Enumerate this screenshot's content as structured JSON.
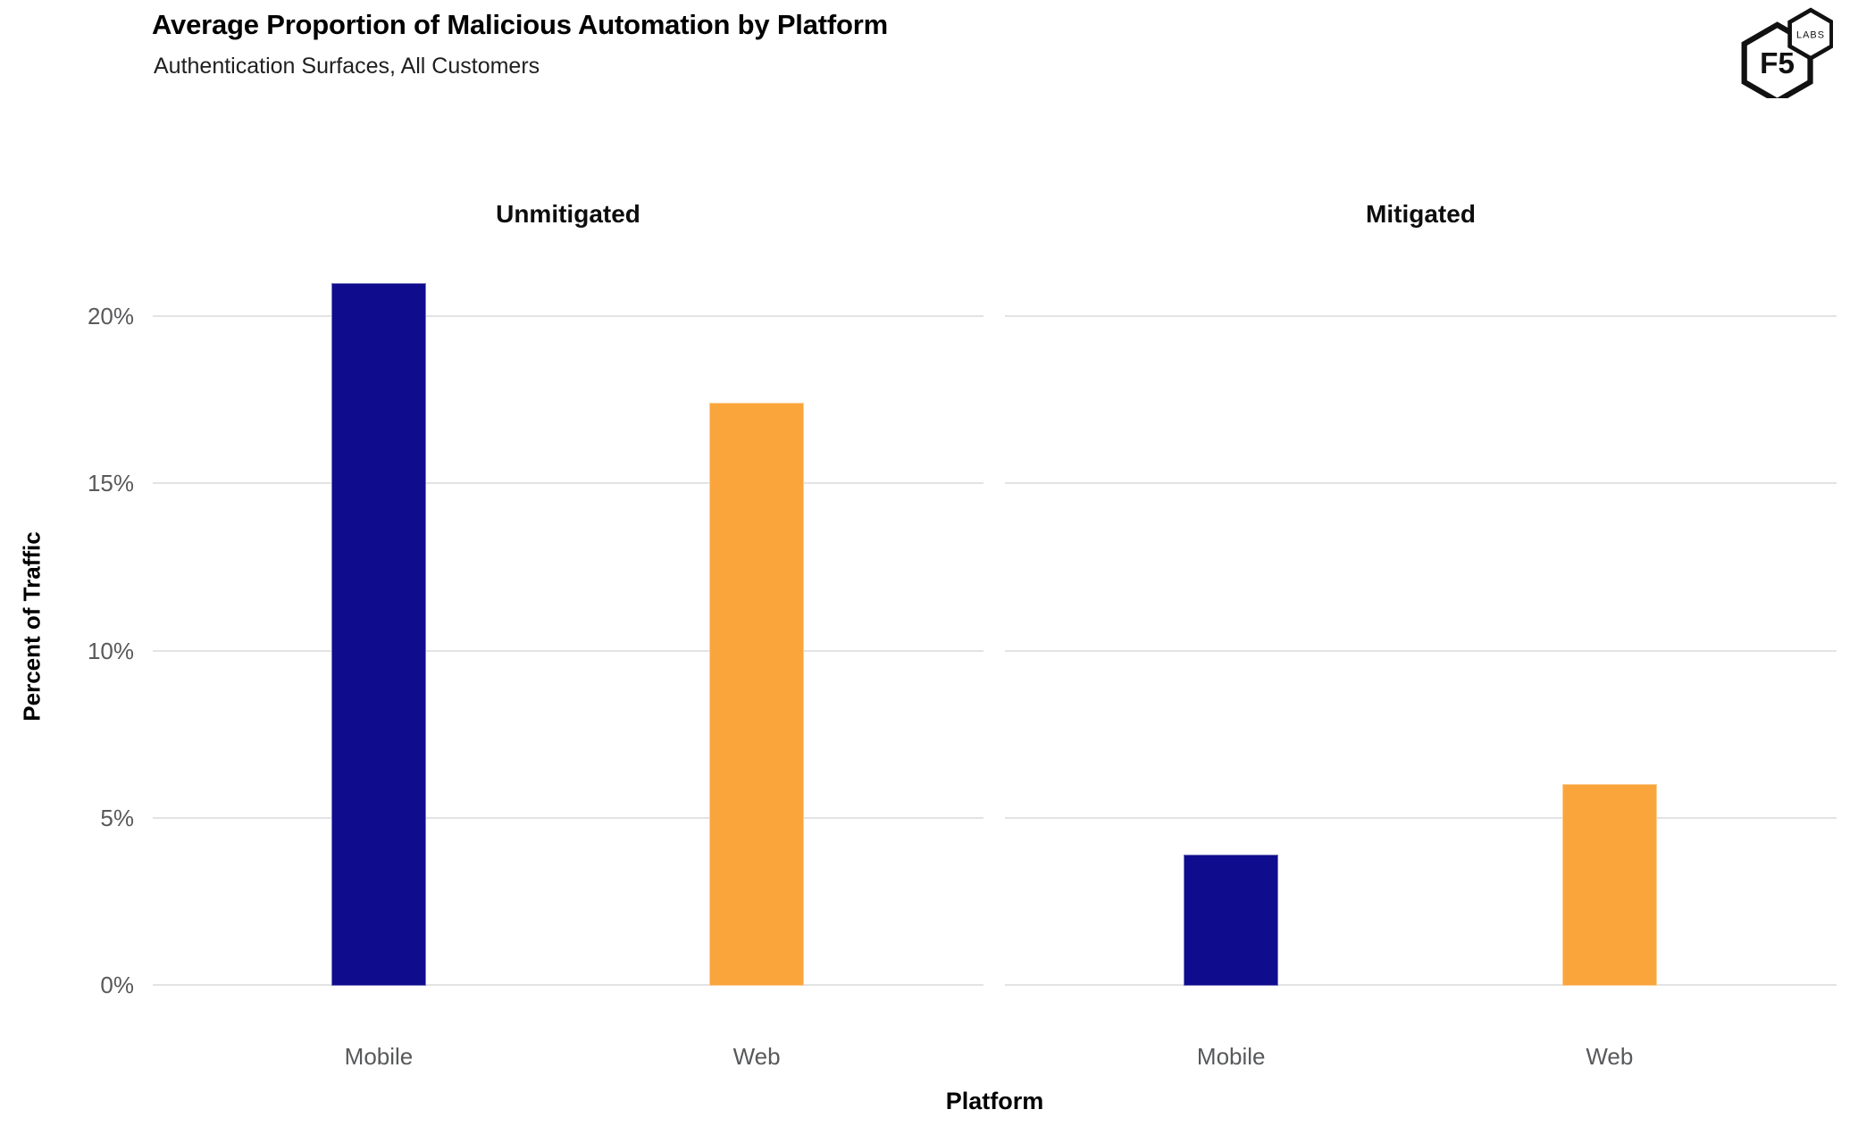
{
  "header": {
    "title": "Average Proportion of Malicious Automation by Platform",
    "subtitle": "Authentication Surfaces, All Customers"
  },
  "logo": {
    "primary": "F5",
    "secondary": "LABS"
  },
  "chart_data": {
    "type": "bar",
    "title": "Average Proportion of Malicious Automation by Platform",
    "subtitle": "Authentication Surfaces, All Customers",
    "xlabel": "Platform",
    "ylabel": "Percent of Traffic",
    "ylim": [
      0,
      22
    ],
    "grid": "horizontal",
    "legend": "none",
    "yticks": [
      {
        "label": "0%",
        "value": 0
      },
      {
        "label": "5%",
        "value": 5
      },
      {
        "label": "10%",
        "value": 10
      },
      {
        "label": "15%",
        "value": 15
      },
      {
        "label": "20%",
        "value": 20
      }
    ],
    "facets": [
      {
        "label": "Unmitigated",
        "categories": [
          "Mobile",
          "Web"
        ],
        "values": [
          21.0,
          17.4
        ]
      },
      {
        "label": "Mitigated",
        "categories": [
          "Mobile",
          "Web"
        ],
        "values": [
          3.9,
          6.0
        ]
      }
    ],
    "colors": {
      "Mobile": "#0f0c8d",
      "Web": "#faa53c"
    }
  }
}
